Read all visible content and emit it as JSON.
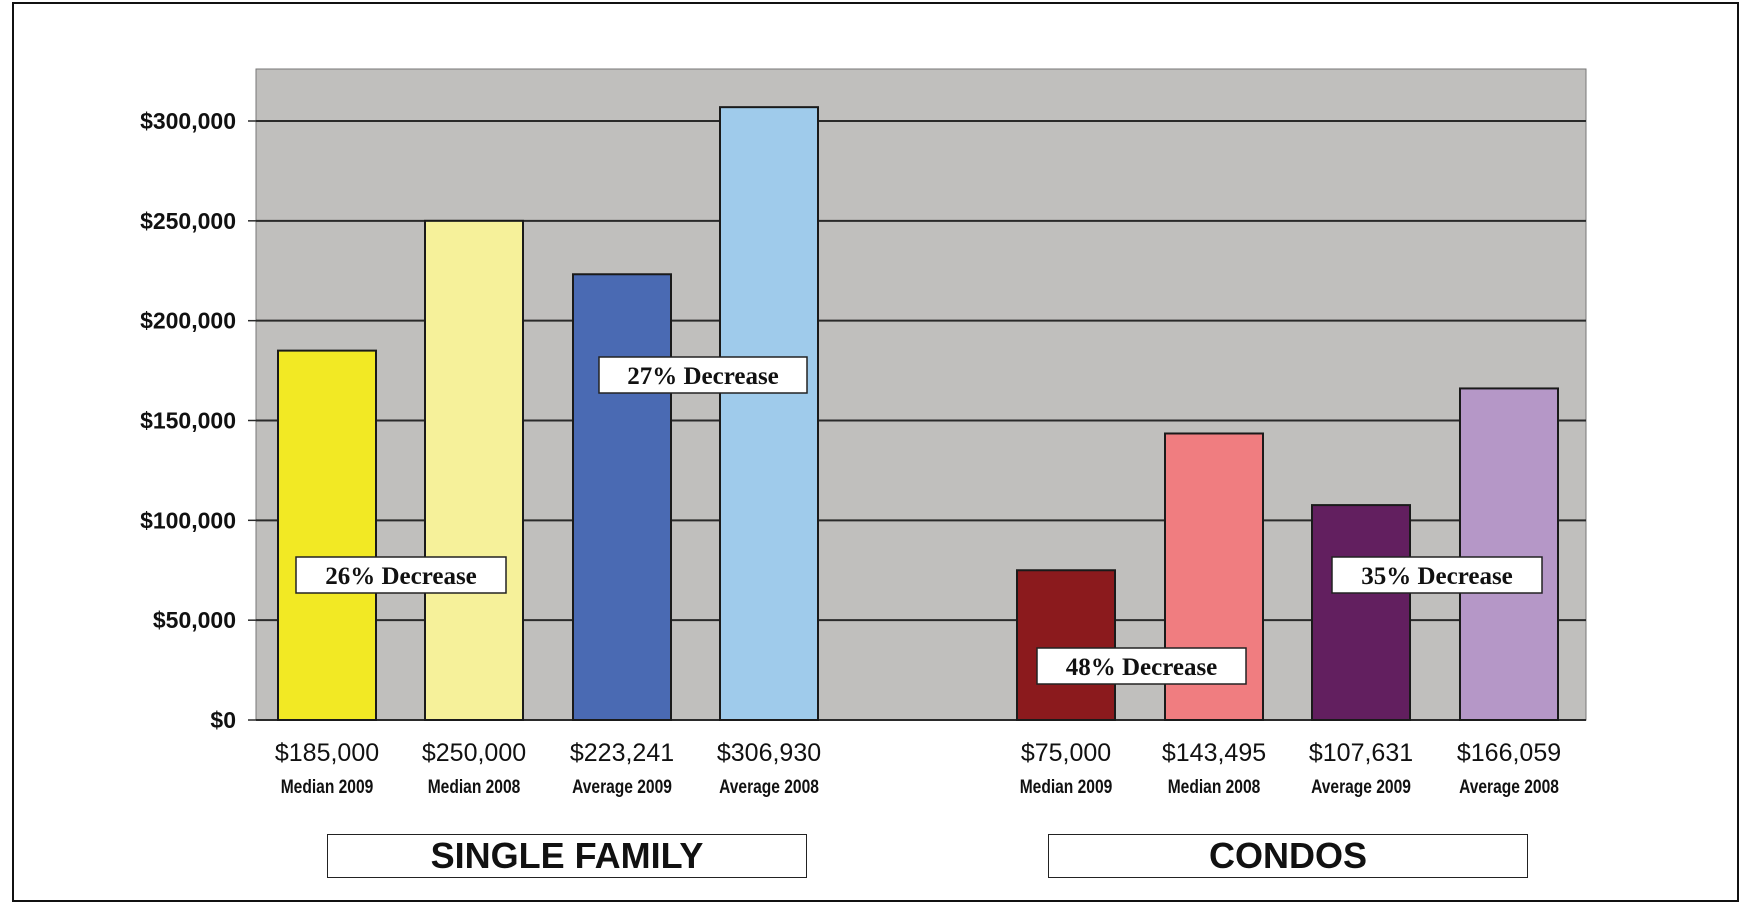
{
  "chart_data": {
    "type": "bar",
    "ylim": [
      0,
      325000
    ],
    "yticks": [
      0,
      50000,
      100000,
      150000,
      200000,
      250000,
      300000
    ],
    "ytick_labels": [
      "$0",
      "$50,000",
      "$100,000",
      "$150,000",
      "$200,000",
      "$250,000",
      "$300,000"
    ],
    "grid": true,
    "plot_background": "#c0bfbd",
    "bars": [
      {
        "value": 185000,
        "value_label": "$185,000",
        "category": "Median 2009",
        "color": "#f2e924"
      },
      {
        "value": 250000,
        "value_label": "$250,000",
        "category": "Median 2008",
        "color": "#f6f19a"
      },
      {
        "value": 223241,
        "value_label": "$223,241",
        "category": "Average 2009",
        "color": "#4a6ab3"
      },
      {
        "value": 306930,
        "value_label": "$306,930",
        "category": "Average 2008",
        "color": "#9fcbeb"
      },
      {
        "value": 75000,
        "value_label": "$75,000",
        "category": "Median 2009",
        "color": "#8b1a1d"
      },
      {
        "value": 143495,
        "value_label": "$143,495",
        "category": "Median 2008",
        "color": "#f07d80"
      },
      {
        "value": 107631,
        "value_label": "$107,631",
        "category": "Average 2009",
        "color": "#621f5f"
      },
      {
        "value": 166059,
        "value_label": "$166,059",
        "category": "Average 2008",
        "color": "#b597c7"
      }
    ],
    "annotations": [
      {
        "text": "26% Decrease",
        "group": "single_family",
        "measure": "median"
      },
      {
        "text": "27% Decrease",
        "group": "single_family",
        "measure": "average"
      },
      {
        "text": "48% Decrease",
        "group": "condos",
        "measure": "median"
      },
      {
        "text": "35% Decrease",
        "group": "condos",
        "measure": "average"
      }
    ],
    "groups": [
      {
        "label": "SINGLE FAMILY"
      },
      {
        "label": "CONDOS"
      }
    ]
  }
}
